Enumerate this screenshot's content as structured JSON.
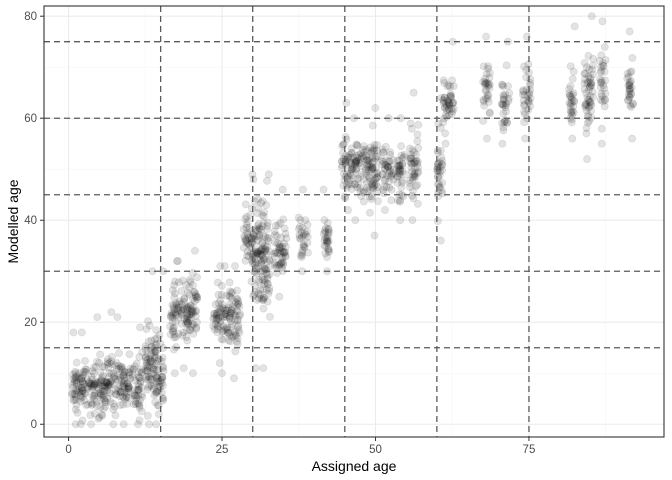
{
  "chart_data": {
    "type": "scatter",
    "title": "",
    "xlabel": "Assigned age",
    "ylabel": "Modelled age",
    "xlim": [
      -4,
      97
    ],
    "ylim": [
      -2.5,
      82
    ],
    "x_ticks": [
      0,
      25,
      50,
      75
    ],
    "y_ticks": [
      0,
      20,
      40,
      60,
      80
    ],
    "x_tick_labels": [
      "0",
      "25",
      "50",
      "75"
    ],
    "y_tick_labels": [
      "0",
      "20",
      "40",
      "60",
      "80"
    ],
    "grid": true,
    "point_color": "#000000",
    "point_alpha": 0.11,
    "reference_lines": {
      "vertical": [
        15,
        30,
        45,
        60,
        75
      ],
      "horizontal": [
        15,
        30,
        45,
        60,
        75
      ],
      "style": "dashed",
      "color": "#5a5a5a"
    },
    "point_groups": [
      {
        "x": [
          0.5,
          1.5
        ],
        "y_min": 0,
        "y_max": 18,
        "y_center": 7
      },
      {
        "x": [
          1.5,
          3.5
        ],
        "y_min": 0,
        "y_max": 18,
        "y_center": 7
      },
      {
        "x": [
          3.5,
          5.5
        ],
        "y_min": 0,
        "y_max": 21,
        "y_center": 7
      },
      {
        "x": [
          5.5,
          7.5
        ],
        "y_min": 0,
        "y_max": 22,
        "y_center": 8
      },
      {
        "x": [
          7.5,
          10
        ],
        "y_min": 0,
        "y_max": 21,
        "y_center": 8
      },
      {
        "x": [
          10,
          12
        ],
        "y_min": 0,
        "y_max": 19,
        "y_center": 8
      },
      {
        "x": [
          12.5,
          13.7
        ],
        "y_min": 0,
        "y_max": 30,
        "y_center": 12
      },
      {
        "x": [
          13.8,
          15.5
        ],
        "y_min": 0,
        "y_max": 30,
        "y_center": 10
      },
      {
        "x": [
          16.5,
          17.8
        ],
        "y_min": 10,
        "y_max": 32,
        "y_center": 21
      },
      {
        "x": [
          17.8,
          19.5
        ],
        "y_min": 11,
        "y_max": 32,
        "y_center": 22
      },
      {
        "x": [
          19.5,
          21
        ],
        "y_min": 10,
        "y_max": 34,
        "y_center": 22
      },
      {
        "x": [
          23.5,
          24.8
        ],
        "y_min": 12,
        "y_max": 31,
        "y_center": 21
      },
      {
        "x": [
          24.8,
          26.3
        ],
        "y_min": 10,
        "y_max": 31,
        "y_center": 21
      },
      {
        "x": [
          26.3,
          28
        ],
        "y_min": 9,
        "y_max": 31,
        "y_center": 21
      },
      {
        "x": [
          28.5,
          30
        ],
        "y_min": 28,
        "y_max": 49,
        "y_center": 37
      },
      {
        "x": [
          30,
          31.6
        ],
        "y_min": 11,
        "y_max": 48,
        "y_center": 33
      },
      {
        "x": [
          31.6,
          32.8
        ],
        "y_min": 11,
        "y_max": 49,
        "y_center": 33
      },
      {
        "x": [
          33.5,
          35.5
        ],
        "y_min": 25,
        "y_max": 46,
        "y_center": 34
      },
      {
        "x": [
          37.5,
          39
        ],
        "y_min": 30,
        "y_max": 46,
        "y_center": 37
      },
      {
        "x": [
          41.5,
          42.5
        ],
        "y_min": 30,
        "y_max": 46,
        "y_center": 37
      },
      {
        "x": [
          44.5,
          46
        ],
        "y_min": 42,
        "y_max": 63,
        "y_center": 50
      },
      {
        "x": [
          46,
          48
        ],
        "y_min": 40,
        "y_max": 60,
        "y_center": 50
      },
      {
        "x": [
          48,
          50.5
        ],
        "y_min": 37,
        "y_max": 62,
        "y_center": 50
      },
      {
        "x": [
          51,
          53
        ],
        "y_min": 42,
        "y_max": 60,
        "y_center": 50
      },
      {
        "x": [
          53.5,
          55
        ],
        "y_min": 40,
        "y_max": 60,
        "y_center": 49
      },
      {
        "x": [
          55.5,
          57
        ],
        "y_min": 40,
        "y_max": 65,
        "y_center": 50
      },
      {
        "x": [
          60,
          61
        ],
        "y_min": 36,
        "y_max": 64,
        "y_center": 50
      },
      {
        "x": [
          61,
          62.8
        ],
        "y_min": 55,
        "y_max": 75,
        "y_center": 63
      },
      {
        "x": [
          67.5,
          68.8
        ],
        "y_min": 56,
        "y_max": 76,
        "y_center": 65
      },
      {
        "x": [
          70.5,
          71.8
        ],
        "y_min": 55,
        "y_max": 75,
        "y_center": 64
      },
      {
        "x": [
          74,
          75.3
        ],
        "y_min": 56,
        "y_max": 76,
        "y_center": 65
      },
      {
        "x": [
          81.5,
          82.5
        ],
        "y_min": 56,
        "y_max": 78,
        "y_center": 65
      },
      {
        "x": [
          84,
          85.5
        ],
        "y_min": 52,
        "y_max": 80,
        "y_center": 65
      },
      {
        "x": [
          86.5,
          87.5
        ],
        "y_min": 55,
        "y_max": 79,
        "y_center": 67
      },
      {
        "x": [
          91,
          92
        ],
        "y_min": 56,
        "y_max": 77,
        "y_center": 65
      }
    ]
  }
}
